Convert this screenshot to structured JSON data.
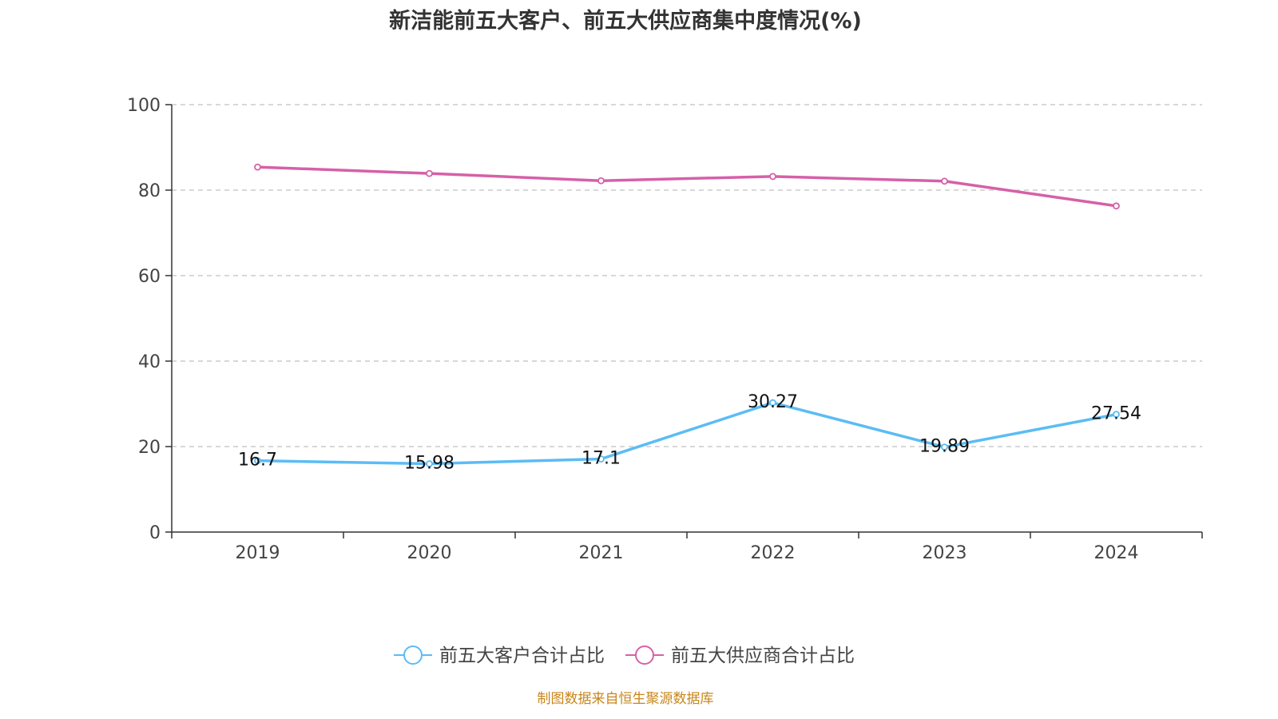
{
  "chart_data": {
    "type": "line",
    "title": "新洁能前五大客户、前五大供应商集中度情况(%)",
    "categories": [
      "2019",
      "2020",
      "2021",
      "2022",
      "2023",
      "2024"
    ],
    "ylim": [
      0,
      100
    ],
    "yticks": [
      0,
      20,
      40,
      60,
      80,
      100
    ],
    "grid": true,
    "legend_position": "bottom",
    "series": [
      {
        "name": "前五大客户合计占比",
        "color": "#5bbcf5",
        "values": [
          16.7,
          15.98,
          17.1,
          30.27,
          19.89,
          27.54
        ],
        "labels": [
          "16.7",
          "15.98",
          "17.1",
          "30.27",
          "19.89",
          "27.54"
        ],
        "show_labels": true
      },
      {
        "name": "前五大供应商合计占比",
        "color": "#d660a8",
        "values": [
          85.4,
          83.9,
          82.2,
          83.2,
          82.1,
          76.3
        ],
        "show_labels": false
      }
    ],
    "source": "制图数据来自恒生聚源数据库"
  }
}
